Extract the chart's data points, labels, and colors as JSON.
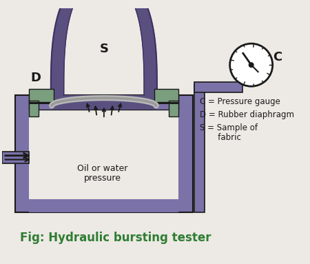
{
  "bg_color": "#ede9e4",
  "purple": "#7b72a8",
  "purple_dark": "#5a5080",
  "green": "#7a9e7e",
  "gray_diaphragm": "#b8b8b8",
  "black": "#1a1a1a",
  "title": "Fig: Hydraulic bursting tester",
  "title_color": "#2e7d32",
  "legend_C": "C = Pressure gauge",
  "legend_D": "D = Rubber diaphragm",
  "legend_S1": "S = Sample of",
  "legend_S2": "       fabric",
  "label_C": "C",
  "label_D": "D",
  "label_S": "S",
  "oil_text1": "Oil or water",
  "oil_text2": "pressure"
}
